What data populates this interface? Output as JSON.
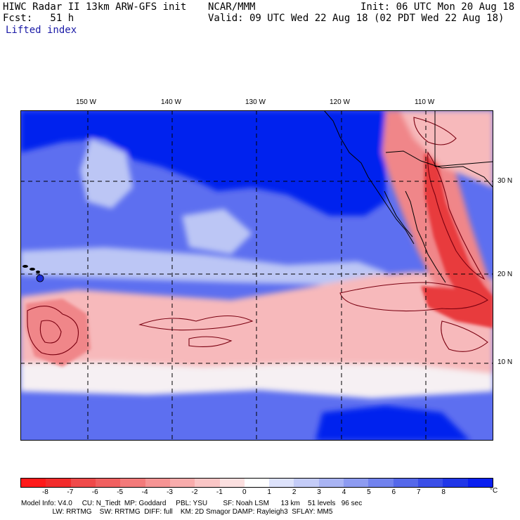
{
  "header": {
    "model_title": "HIWC Radar II 13km ARW-GFS init",
    "org": "NCAR/MMM",
    "init": "Init: 06 UTC Mon 20 Aug 18",
    "fcst": "Fcst:   51 h",
    "valid": "Valid: 09 UTC Wed 22 Aug 18 (02 PDT Wed 22 Aug 18)",
    "field_name": "Lifted index"
  },
  "map": {
    "lon_labels": [
      "150 W",
      "140 W",
      "130 W",
      "120 W",
      "110 W"
    ],
    "lat_labels": [
      "30 N",
      "20 N",
      "10 N"
    ],
    "colors": {
      "deep_stable": "#0022ee",
      "stable": "#5d6ff0",
      "mild_stable": "#bcc6f5",
      "neutral": "#f6f0f3",
      "mild_unstable": "#f7b9bb",
      "unstable": "#f08689",
      "very_unstable": "#e83a3e",
      "contour": "#7a0010"
    }
  },
  "colorbar": {
    "unit": "°C",
    "colors": [
      "#ff1a1a",
      "#f22c2c",
      "#ef4a4a",
      "#f06060",
      "#f37a7a",
      "#f69494",
      "#f8acac",
      "#fac6c6",
      "#fce0e0",
      "#ffffff",
      "#dde2fb",
      "#c4ccf8",
      "#a9b4f4",
      "#8d9bf1",
      "#7182ee",
      "#5568ea",
      "#3a4ee8",
      "#2036e8",
      "#0a1ff0"
    ],
    "tick_values": [
      "-8",
      "-7",
      "-6",
      "-5",
      "-4",
      "-3",
      "-2",
      "-1",
      "0",
      "1",
      "2",
      "3",
      "4",
      "5",
      "6",
      "7",
      "8"
    ]
  },
  "footer": {
    "line1": "Model Info: V4.0     CU: N_Tiedt  MP: Goddard     PBL: YSU        SF: Noah LSM      13 km    51 levels   96 sec",
    "line2": "                LW: RRTMG    SW: RRTMG  DIFF: full    KM: 2D Smagor DAMP: Rayleigh3  SFLAY: MM5"
  }
}
